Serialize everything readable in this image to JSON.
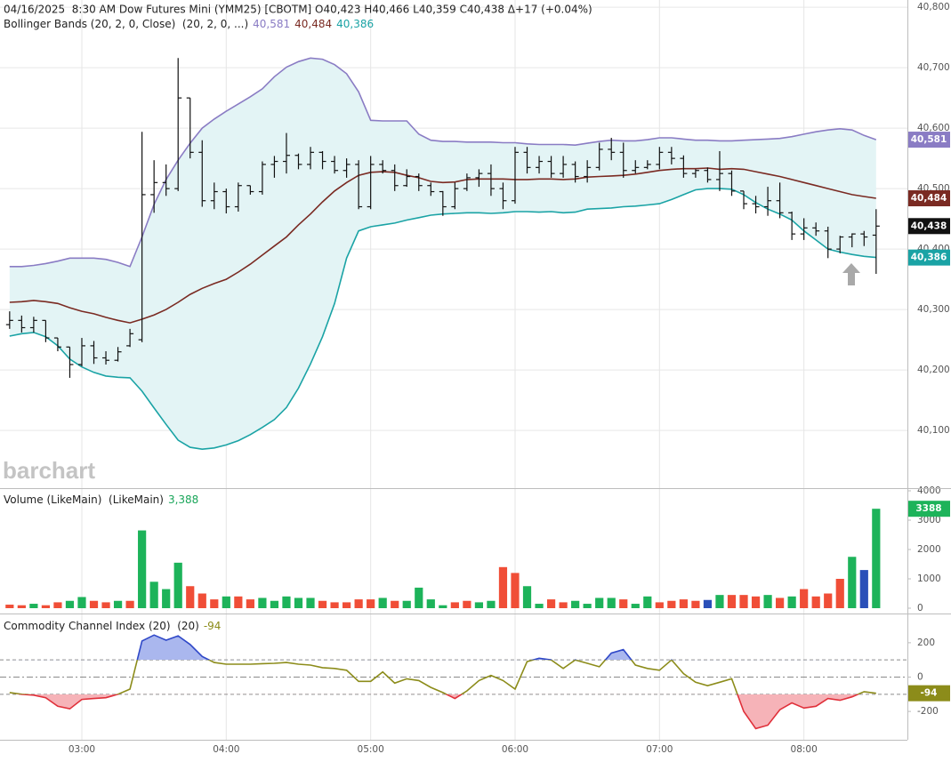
{
  "chart_data": [
    {
      "type": "ohlc",
      "title": "04/16/2025  8:30 AM Dow Futures Mini (YMM25) [CBOTM] O40,423 H40,466 L40,359 C40,438 Δ+17 (+0.04%)",
      "subtitle": "Bollinger Bands (20, 2, 0, Close)  (20, 2, 0, ...)",
      "watermark": "barchart",
      "x": [
        150,
        155,
        160,
        165,
        170,
        175,
        180,
        185,
        190,
        195,
        200,
        205,
        210,
        215,
        220,
        225,
        230,
        235,
        240,
        245,
        250,
        255,
        260,
        265,
        270,
        275,
        280,
        285,
        290,
        295,
        300,
        305,
        310,
        315,
        320,
        325,
        330,
        335,
        340,
        345,
        350,
        355,
        360,
        365,
        370,
        375,
        380,
        385,
        390,
        395,
        400,
        405,
        410,
        415,
        420,
        425,
        430,
        435,
        440,
        445,
        450,
        455,
        460,
        465,
        470,
        475,
        480,
        485,
        490,
        495,
        500,
        505,
        510
      ],
      "xlim": [
        146,
        523
      ],
      "ylim": [
        40006,
        40812
      ],
      "yticks": [
        {
          "value": 40100,
          "label": "40,100"
        },
        {
          "value": 40200,
          "label": "40,200"
        },
        {
          "value": 40300,
          "label": "40,300"
        },
        {
          "value": 40400,
          "label": "40,400"
        },
        {
          "value": 40500,
          "label": "40,500"
        },
        {
          "value": 40600,
          "label": "40,600"
        },
        {
          "value": 40700,
          "label": "40,700"
        },
        {
          "value": 40800,
          "label": "40,800"
        }
      ],
      "grid": true,
      "color": "#111111",
      "badge": "40,438",
      "open": [
        40275,
        40282,
        40270,
        40282,
        40253,
        40238,
        40209,
        40240,
        40220,
        40216,
        40240,
        40250,
        40490,
        40510,
        40500,
        40650,
        40560,
        40480,
        40495,
        40470,
        40505,
        40495,
        40540,
        40545,
        40555,
        40540,
        40560,
        40545,
        40530,
        40540,
        40470,
        40540,
        40530,
        40505,
        40520,
        40505,
        40495,
        40470,
        40500,
        40518,
        40525,
        40500,
        40480,
        40560,
        40535,
        40545,
        40525,
        40540,
        40520,
        40535,
        40565,
        40560,
        40530,
        40535,
        40540,
        40560,
        40550,
        40525,
        40530,
        40515,
        40525,
        40496,
        40475,
        40470,
        40480,
        40460,
        40425,
        40435,
        40430,
        40400,
        40420,
        40425,
        40423
      ],
      "high": [
        40297,
        40290,
        40288,
        40282,
        40253,
        40238,
        40253,
        40248,
        40231,
        40238,
        40268,
        40594,
        40547,
        40540,
        40716,
        40650,
        40580,
        40510,
        40500,
        40510,
        40505,
        40545,
        40554,
        40592,
        40558,
        40569,
        40562,
        40554,
        40550,
        40547,
        40554,
        40547,
        40540,
        40532,
        40525,
        40510,
        40496,
        40510,
        40525,
        40532,
        40540,
        40510,
        40569,
        40569,
        40554,
        40554,
        40554,
        40545,
        40547,
        40576,
        40584,
        40576,
        40547,
        40547,
        40569,
        40569,
        40555,
        40532,
        40535,
        40562,
        40530,
        40496,
        40488,
        40503,
        40510,
        40462,
        40451,
        40444,
        40437,
        40422,
        40426,
        40430,
        40466
      ],
      "low": [
        40268,
        40262,
        40262,
        40246,
        40231,
        40187,
        40206,
        40210,
        40209,
        40214,
        40238,
        40246,
        40460,
        40488,
        40496,
        40550,
        40470,
        40466,
        40459,
        40462,
        40490,
        40490,
        40518,
        40525,
        40532,
        40532,
        40532,
        40525,
        40518,
        40466,
        40466,
        40525,
        40496,
        40503,
        40496,
        40488,
        40455,
        40466,
        40496,
        40503,
        40488,
        40466,
        40475,
        40525,
        40525,
        40518,
        40518,
        40510,
        40510,
        40530,
        40547,
        40518,
        40525,
        40532,
        40532,
        40540,
        40518,
        40518,
        40510,
        40496,
        40488,
        40466,
        40459,
        40455,
        40451,
        40415,
        40415,
        40422,
        40385,
        40393,
        40403,
        40405,
        40359
      ],
      "close": [
        40282,
        40270,
        40282,
        40253,
        40238,
        40209,
        40240,
        40220,
        40216,
        40230,
        40260,
        40490,
        40510,
        40500,
        40650,
        40560,
        40480,
        40495,
        40470,
        40505,
        40495,
        40540,
        40545,
        40555,
        40540,
        40560,
        40545,
        40530,
        40540,
        40470,
        40540,
        40530,
        40505,
        40520,
        40505,
        40495,
        40470,
        40500,
        40518,
        40525,
        40500,
        40480,
        40560,
        40535,
        40545,
        40525,
        40540,
        40520,
        40535,
        40565,
        40560,
        40530,
        40535,
        40540,
        40560,
        40550,
        40525,
        40530,
        40515,
        40525,
        40496,
        40475,
        40470,
        40480,
        40460,
        40425,
        40435,
        40430,
        40400,
        40420,
        40425,
        40420,
        40438
      ],
      "band_fill": "#e3f4f5",
      "bands": [
        {
          "color": "#8a7cc4",
          "label": "40,581",
          "values": [
            40371,
            40371,
            40373,
            40376,
            40380,
            40385,
            40385,
            40385,
            40383,
            40378,
            40371,
            40420,
            40474,
            40515,
            40547,
            40575,
            40600,
            40615,
            40628,
            40640,
            40652,
            40665,
            40685,
            40701,
            40710,
            40716,
            40714,
            40705,
            40690,
            40660,
            40613,
            40612,
            40612,
            40612,
            40590,
            40580,
            40578,
            40578,
            40577,
            40577,
            40577,
            40576,
            40576,
            40574,
            40573,
            40573,
            40573,
            40572,
            40575,
            40578,
            40580,
            40579,
            40579,
            40581,
            40584,
            40584,
            40582,
            40580,
            40580,
            40579,
            40579,
            40580,
            40581,
            40582,
            40583,
            40586,
            40590,
            40594,
            40597,
            40599,
            40597,
            40588,
            40581
          ]
        },
        {
          "color": "#7a2a22",
          "label": "40,484",
          "values": [
            40312,
            40313,
            40315,
            40313,
            40310,
            40303,
            40297,
            40293,
            40287,
            40282,
            40278,
            40284,
            40291,
            40300,
            40312,
            40325,
            40335,
            40343,
            40350,
            40362,
            40375,
            40390,
            40405,
            40420,
            40440,
            40458,
            40478,
            40496,
            40510,
            40522,
            40527,
            40528,
            40527,
            40522,
            40518,
            40512,
            40510,
            40511,
            40515,
            40516,
            40516,
            40516,
            40515,
            40515,
            40516,
            40516,
            40515,
            40516,
            40519,
            40520,
            40521,
            40522,
            40524,
            40527,
            40530,
            40532,
            40533,
            40533,
            40534,
            40532,
            40533,
            40532,
            40528,
            40524,
            40520,
            40515,
            40510,
            40505,
            40500,
            40495,
            40490,
            40487,
            40484
          ]
        },
        {
          "color": "#1aa3a5",
          "label": "40,386",
          "values": [
            40256,
            40260,
            40262,
            40255,
            40240,
            40218,
            40205,
            40196,
            40190,
            40188,
            40187,
            40165,
            40137,
            40110,
            40084,
            40072,
            40069,
            40071,
            40076,
            40083,
            40093,
            40105,
            40118,
            40138,
            40170,
            40210,
            40255,
            40310,
            40385,
            40430,
            40437,
            40440,
            40443,
            40448,
            40452,
            40456,
            40458,
            40459,
            40460,
            40460,
            40459,
            40460,
            40462,
            40462,
            40461,
            40462,
            40460,
            40461,
            40466,
            40467,
            40468,
            40470,
            40471,
            40473,
            40475,
            40482,
            40490,
            40498,
            40500,
            40500,
            40499,
            40490,
            40477,
            40466,
            40458,
            40448,
            40430,
            40415,
            40400,
            40395,
            40391,
            40388,
            40386
          ]
        }
      ]
    },
    {
      "type": "bar",
      "title": "Volume (LikeMain)  (LikeMain)",
      "legend_value": "3,388",
      "legend_color": "#1aa65a",
      "badge_color": "#1db35a",
      "x": [
        150,
        155,
        160,
        165,
        170,
        175,
        180,
        185,
        190,
        195,
        200,
        205,
        210,
        215,
        220,
        225,
        230,
        235,
        240,
        245,
        250,
        255,
        260,
        265,
        270,
        275,
        280,
        285,
        290,
        295,
        300,
        305,
        310,
        315,
        320,
        325,
        330,
        335,
        340,
        345,
        350,
        355,
        360,
        365,
        370,
        375,
        380,
        385,
        390,
        395,
        400,
        405,
        410,
        415,
        420,
        425,
        430,
        435,
        440,
        445,
        450,
        455,
        460,
        465,
        470,
        475,
        480,
        485,
        490,
        495,
        500,
        505,
        510
      ],
      "xlim": [
        146,
        523
      ],
      "ylim": [
        0,
        4000
      ],
      "yticks": [
        0,
        1000,
        2000,
        3000,
        4000
      ],
      "values": [
        120,
        100,
        150,
        100,
        200,
        250,
        380,
        250,
        200,
        250,
        250,
        2650,
        900,
        650,
        1550,
        750,
        500,
        300,
        400,
        400,
        300,
        350,
        250,
        400,
        350,
        350,
        250,
        200,
        200,
        300,
        300,
        350,
        250,
        250,
        700,
        300,
        100,
        200,
        250,
        200,
        250,
        1400,
        1200,
        750,
        150,
        300,
        200,
        250,
        150,
        350,
        350,
        300,
        150,
        400,
        200,
        250,
        300,
        250,
        280,
        450,
        450,
        450,
        400,
        450,
        350,
        400,
        650,
        400,
        500,
        1000,
        1750,
        1300,
        3388
      ],
      "colors": [
        "#f04e37",
        "#f04e37",
        "#1db35a",
        "#f04e37",
        "#f04e37",
        "#1db35a",
        "#1db35a",
        "#f04e37",
        "#f04e37",
        "#1db35a",
        "#f04e37",
        "#1db35a",
        "#1db35a",
        "#1db35a",
        "#1db35a",
        "#f04e37",
        "#f04e37",
        "#f04e37",
        "#1db35a",
        "#f04e37",
        "#f04e37",
        "#1db35a",
        "#1db35a",
        "#1db35a",
        "#1db35a",
        "#1db35a",
        "#f04e37",
        "#f04e37",
        "#f04e37",
        "#f04e37",
        "#f04e37",
        "#1db35a",
        "#f04e37",
        "#1db35a",
        "#1db35a",
        "#1db35a",
        "#1db35a",
        "#f04e37",
        "#f04e37",
        "#1db35a",
        "#1db35a",
        "#f04e37",
        "#f04e37",
        "#1db35a",
        "#1db35a",
        "#f04e37",
        "#f04e37",
        "#1db35a",
        "#1db35a",
        "#1db35a",
        "#1db35a",
        "#f04e37",
        "#1db35a",
        "#1db35a",
        "#f04e37",
        "#f04e37",
        "#f04e37",
        "#f04e37",
        "#2a4fb8",
        "#1db35a",
        "#f04e37",
        "#f04e37",
        "#f04e37",
        "#1db35a",
        "#f04e37",
        "#1db35a",
        "#f04e37",
        "#f04e37",
        "#f04e37",
        "#f04e37",
        "#1db35a",
        "#2a4fb8",
        "#1db35a"
      ]
    },
    {
      "type": "line",
      "title": "Commodity Channel Index (20)  (20)",
      "color": "#8c8c1a",
      "upper_color": "#2f48c8",
      "lower_color": "#e0303a",
      "upper_fill": "#aab7ee",
      "lower_fill": "#f6b3b8",
      "levels": [
        100,
        0,
        -100
      ],
      "x": [
        150,
        155,
        160,
        165,
        170,
        175,
        180,
        185,
        190,
        195,
        200,
        205,
        210,
        215,
        220,
        225,
        230,
        235,
        240,
        245,
        250,
        255,
        260,
        265,
        270,
        275,
        280,
        285,
        290,
        295,
        300,
        305,
        310,
        315,
        320,
        325,
        330,
        335,
        340,
        345,
        350,
        355,
        360,
        365,
        370,
        375,
        380,
        385,
        390,
        395,
        400,
        405,
        410,
        415,
        420,
        425,
        430,
        435,
        440,
        445,
        450,
        455,
        460,
        465,
        470,
        475,
        480,
        485,
        490,
        495,
        500,
        505,
        510
      ],
      "xlim": [
        146,
        523
      ],
      "xticks": [
        {
          "value": 180,
          "label": "03:00"
        },
        {
          "value": 240,
          "label": "04:00"
        },
        {
          "value": 300,
          "label": "05:00"
        },
        {
          "value": 360,
          "label": "06:00"
        },
        {
          "value": 420,
          "label": "07:00"
        },
        {
          "value": 480,
          "label": "08:00"
        }
      ],
      "ylim": [
        -365,
        365
      ],
      "yticks": [
        -200,
        0,
        200
      ],
      "values": [
        -90,
        -100,
        -105,
        -120,
        -170,
        -185,
        -130,
        -125,
        -120,
        -100,
        -70,
        210,
        245,
        215,
        240,
        190,
        120,
        85,
        75,
        75,
        75,
        78,
        80,
        85,
        75,
        70,
        55,
        50,
        40,
        -25,
        -25,
        30,
        -35,
        -10,
        -20,
        -60,
        -90,
        -125,
        -80,
        -20,
        10,
        -20,
        -70,
        90,
        110,
        100,
        50,
        100,
        80,
        60,
        140,
        160,
        70,
        50,
        40,
        100,
        20,
        -30,
        -50,
        -30,
        -10,
        -200,
        -300,
        -280,
        -190,
        -150,
        -180,
        -170,
        -125,
        -135,
        -115,
        -85,
        -94
      ]
    }
  ]
}
